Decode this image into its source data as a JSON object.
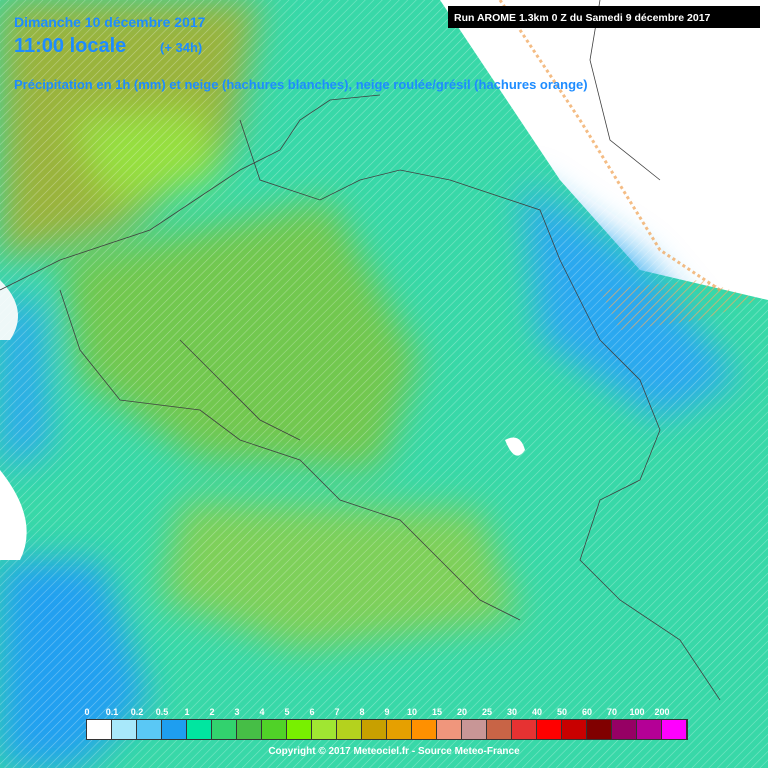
{
  "header": {
    "date": "Dimanche 10 décembre 2017",
    "time": "11:00 locale",
    "offset": "(+ 34h)",
    "description": "Précipitation en 1h (mm) et neige (hachures blanches), neige roulée/grésil (hachures orange)",
    "run": "Run AROME 1.3km 0 Z du Samedi 9 décembre 2017"
  },
  "legend": {
    "labels": [
      "0",
      "0.1",
      "0.2",
      "0.5",
      "1",
      "2",
      "3",
      "4",
      "5",
      "6",
      "7",
      "8",
      "9",
      "10",
      "15",
      "20",
      "25",
      "30",
      "40",
      "50",
      "60",
      "70",
      "100",
      "200"
    ],
    "colors": [
      "#ffffff",
      "#a8e8fa",
      "#5ac8f5",
      "#1e9ef0",
      "#00e6a0",
      "#32d26e",
      "#46be46",
      "#50d228",
      "#78f000",
      "#a0e632",
      "#b4d21e",
      "#c8a000",
      "#e6a000",
      "#ff9000",
      "#f0967c",
      "#c89696",
      "#c86446",
      "#e63232",
      "#ff0000",
      "#c80000",
      "#800000",
      "#960064",
      "#b40096",
      "#ff00ff"
    ]
  },
  "footer": {
    "copyright": "Copyright © 2017 Meteociel.fr - Source Meteo-France"
  }
}
